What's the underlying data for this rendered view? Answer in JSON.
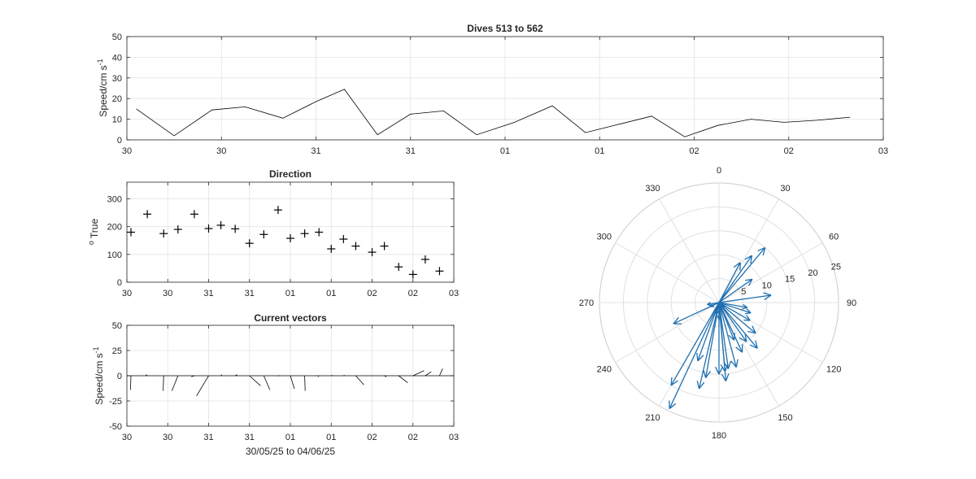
{
  "chart_data": [
    {
      "id": "speed",
      "type": "line",
      "title": "Dives 513 to 562",
      "xlabel": "",
      "ylabel": "Speed/cm s",
      "ylabel_superscript": "-1",
      "x_tick_labels": [
        "30",
        "30",
        "31",
        "31",
        "01",
        "01",
        "02",
        "02",
        "03"
      ],
      "x_range": [
        0,
        8
      ],
      "ylim": [
        0,
        50
      ],
      "y_ticks": [
        0,
        10,
        20,
        30,
        40,
        50
      ],
      "grid": true,
      "line_color": "#000000",
      "x": [
        0.1,
        0.5,
        0.9,
        1.25,
        1.65,
        2.0,
        2.3,
        2.65,
        3.0,
        3.35,
        3.7,
        4.1,
        4.5,
        4.85,
        5.2,
        5.55,
        5.9,
        6.25,
        6.6,
        6.95,
        7.3,
        7.65
      ],
      "values": [
        15,
        2,
        14.5,
        16,
        10.5,
        18.5,
        24.5,
        2.5,
        12.5,
        14,
        2.5,
        8.5,
        16.5,
        3.5,
        7.5,
        11.5,
        1.5,
        7,
        10,
        8.5,
        9.5,
        11
      ]
    },
    {
      "id": "direction",
      "type": "scatter",
      "title": "Direction",
      "xlabel": "",
      "ylabel": "True",
      "ylabel_prefix": "o",
      "x_tick_labels": [
        "30",
        "30",
        "31",
        "31",
        "01",
        "01",
        "02",
        "02",
        "03"
      ],
      "x_range": [
        0,
        8
      ],
      "ylim": [
        0,
        360
      ],
      "y_ticks": [
        0,
        100,
        200,
        300
      ],
      "grid": true,
      "marker": "+",
      "marker_color": "#000000",
      "x": [
        0.1,
        0.5,
        0.9,
        1.25,
        1.65,
        2.0,
        2.3,
        2.65,
        3.0,
        3.35,
        3.7,
        4.0,
        4.35,
        4.7,
        5.0,
        5.3,
        5.6,
        6.0,
        6.3,
        6.65,
        7.0,
        7.3,
        7.65
      ],
      "values": [
        180,
        245,
        175,
        190,
        245,
        193,
        205,
        192,
        140,
        172,
        260,
        158,
        175,
        180,
        120,
        155,
        130,
        108,
        130,
        55,
        28,
        82,
        40
      ]
    },
    {
      "id": "vectors",
      "type": "vector",
      "title": "Current vectors",
      "xlabel": "30/05/25 to 04/06/25",
      "ylabel": "Speed/cm s",
      "ylabel_superscript": "-1",
      "x_tick_labels": [
        "30",
        "30",
        "31",
        "31",
        "01",
        "01",
        "02",
        "02",
        "03"
      ],
      "x_range": [
        0,
        8
      ],
      "ylim": [
        -50,
        50
      ],
      "y_ticks": [
        -50,
        -25,
        0,
        25,
        50
      ],
      "grid": true,
      "line_color": "#000000",
      "x": [
        0.1,
        0.5,
        0.9,
        1.25,
        1.65,
        2.0,
        2.3,
        2.65,
        3.0,
        3.35,
        3.7,
        4.0,
        4.35,
        4.7,
        5.0,
        5.3,
        5.6,
        6.0,
        6.3,
        6.65,
        7.0,
        7.3,
        7.65
      ],
      "u": [
        -0.5,
        -1.5,
        -0.5,
        -6,
        -3,
        -12,
        1,
        2,
        11,
        6,
        2,
        4,
        0.5,
        -1,
        1,
        1,
        8,
        0.5,
        2,
        9,
        11,
        6,
        3
      ],
      "v": [
        -14,
        1,
        -15,
        -15,
        -1,
        -20,
        1,
        1,
        -10,
        -14,
        0,
        -13,
        -15,
        -1,
        0.5,
        0.5,
        -9,
        0,
        -1,
        -7,
        5,
        4,
        7
      ]
    },
    {
      "id": "polar",
      "type": "polar-compass",
      "angle_labels": [
        "0",
        "30",
        "60",
        "90",
        "120",
        "150",
        "180",
        "210",
        "240",
        "270",
        "300",
        "330"
      ],
      "radius_labels": [
        "5",
        "10",
        "15",
        "20",
        "25"
      ],
      "r_max": 25,
      "arrow_color": "#1f6fb0",
      "angles": [
        180,
        245,
        175,
        190,
        245,
        193,
        205,
        192,
        140,
        172,
        260,
        158,
        175,
        180,
        120,
        155,
        130,
        108,
        130,
        55,
        28,
        82,
        40,
        210,
        200,
        165,
        145,
        35,
        100
      ],
      "lengths": [
        15,
        2,
        14.5,
        16,
        10.5,
        18.5,
        24.5,
        2.5,
        12.5,
        14,
        2.5,
        8.5,
        16.5,
        3.5,
        7.5,
        11.5,
        1.5,
        7,
        10,
        8.5,
        9.5,
        11,
        15,
        20,
        13,
        14,
        10,
        12,
        6
      ]
    }
  ]
}
